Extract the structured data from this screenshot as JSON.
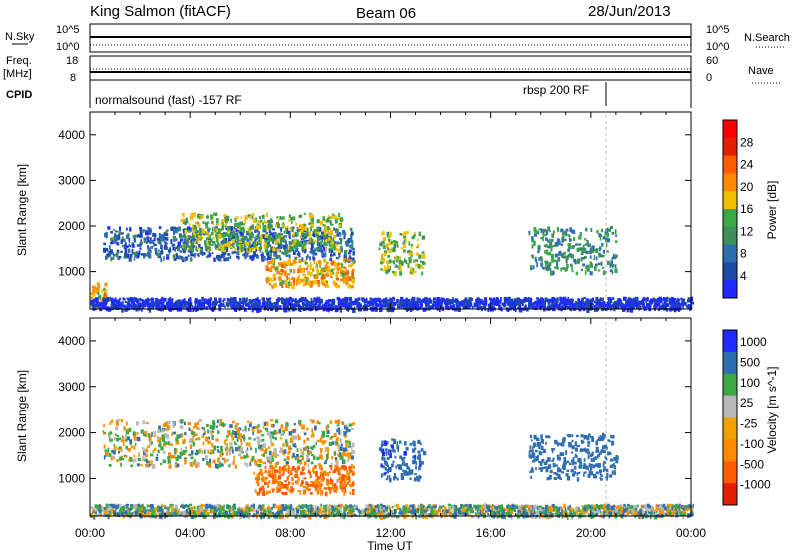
{
  "header": {
    "site_title": "King Salmon (fitACF)",
    "beam": "Beam 06",
    "date": "28/Jun/2013"
  },
  "strip_panels": {
    "nsky": {
      "label": "N.Sky",
      "top_tick": "10^5",
      "bottom_tick": "10^0",
      "right_label": "N.Search",
      "right_top_tick": "10^5",
      "right_bottom_tick": "10^0"
    },
    "freq": {
      "label_line1": "Freq.",
      "label_line2": "[MHz]",
      "top_tick": "18",
      "bottom_tick": "8",
      "right_label": "Nave",
      "right_top_tick": "60",
      "right_bottom_tick": "0"
    },
    "cpid": {
      "label": "CPID",
      "mode_1": "normalsound (fast) -157 RF",
      "mode_2": "rbsp 200 RF"
    }
  },
  "axes": {
    "x_ticks": [
      "00:00",
      "04:00",
      "08:00",
      "12:00",
      "16:00",
      "20:00",
      "00:00"
    ],
    "x_label": "Time UT",
    "y_ticks": [
      "1000",
      "2000",
      "3000",
      "4000"
    ],
    "y_label": "Slant Range [km]"
  },
  "colors": {
    "power": [
      "#1f2bff",
      "#1d4aa3",
      "#2f6fb0",
      "#3f8f59",
      "#39a845",
      "#f0c000",
      "#ff8a00",
      "#ff5a00",
      "#e61e00",
      "#ff0000"
    ],
    "velocity": [
      "#e61e00",
      "#ff5a00",
      "#ff8a00",
      "#f0a000",
      "#b8b8b8",
      "#39a845",
      "#2f6fb0",
      "#1f2bff"
    ]
  },
  "chart_data": [
    {
      "type": "heatmap",
      "title": "Power",
      "colorbar_label": "Power [dB]",
      "colorbar_ticks": [
        "4",
        "8",
        "12",
        "16",
        "20",
        "24",
        "28"
      ],
      "xlabel": "",
      "ylabel": "Slant Range [km]",
      "xlim": [
        "00:00",
        "24:00"
      ],
      "ylim": [
        180,
        4500
      ],
      "x_ticks": [
        "00:00",
        "04:00",
        "08:00",
        "12:00",
        "16:00",
        "20:00",
        "00:00"
      ],
      "y_ticks": [
        1000,
        2000,
        3000,
        4000
      ],
      "echo_regions": [
        {
          "t_start": 0.0,
          "t_end": 0.6,
          "r_low": 250,
          "r_high": 800,
          "value_db": 20
        },
        {
          "t_start": 0.5,
          "t_end": 10.5,
          "r_low": 1300,
          "r_high": 2000,
          "value_db": 8
        },
        {
          "t_start": 3.5,
          "t_end": 10.0,
          "r_low": 1500,
          "r_high": 2300,
          "value_db": 16
        },
        {
          "t_start": 7.0,
          "t_end": 10.5,
          "r_low": 700,
          "r_high": 1300,
          "value_db": 20
        },
        {
          "t_start": 11.5,
          "t_end": 13.3,
          "r_low": 1000,
          "r_high": 1900,
          "value_db": 16
        },
        {
          "t_start": 17.5,
          "t_end": 21.0,
          "r_low": 1000,
          "r_high": 2000,
          "value_db": 12
        },
        {
          "t_start": 0.0,
          "t_end": 24.0,
          "r_low": 200,
          "r_high": 450,
          "value_db": 4
        }
      ]
    },
    {
      "type": "heatmap",
      "title": "Velocity",
      "colorbar_label": "Velocity [m s^-1]",
      "colorbar_ticks": [
        "1000",
        "500",
        "100",
        "25",
        "-25",
        "-100",
        "-500",
        "-1000"
      ],
      "xlabel": "Time UT",
      "ylabel": "Slant Range [km]",
      "xlim": [
        "00:00",
        "24:00"
      ],
      "ylim": [
        180,
        4500
      ],
      "x_ticks": [
        "00:00",
        "04:00",
        "08:00",
        "12:00",
        "16:00",
        "20:00",
        "00:00"
      ],
      "y_ticks": [
        1000,
        2000,
        3000,
        4000
      ],
      "echo_regions": [
        {
          "t_start": 0.5,
          "t_end": 10.5,
          "r_low": 1300,
          "r_high": 2300,
          "value_ms": 0
        },
        {
          "t_start": 6.5,
          "t_end": 10.5,
          "r_low": 700,
          "r_high": 1300,
          "value_ms": -300
        },
        {
          "t_start": 11.5,
          "t_end": 13.3,
          "r_low": 1000,
          "r_high": 1900,
          "value_ms": 400
        },
        {
          "t_start": 17.5,
          "t_end": 21.0,
          "r_low": 1000,
          "r_high": 2000,
          "value_ms": 300
        },
        {
          "t_start": 0.0,
          "t_end": 24.0,
          "r_low": 200,
          "r_high": 450,
          "value_ms": 50
        }
      ]
    }
  ]
}
